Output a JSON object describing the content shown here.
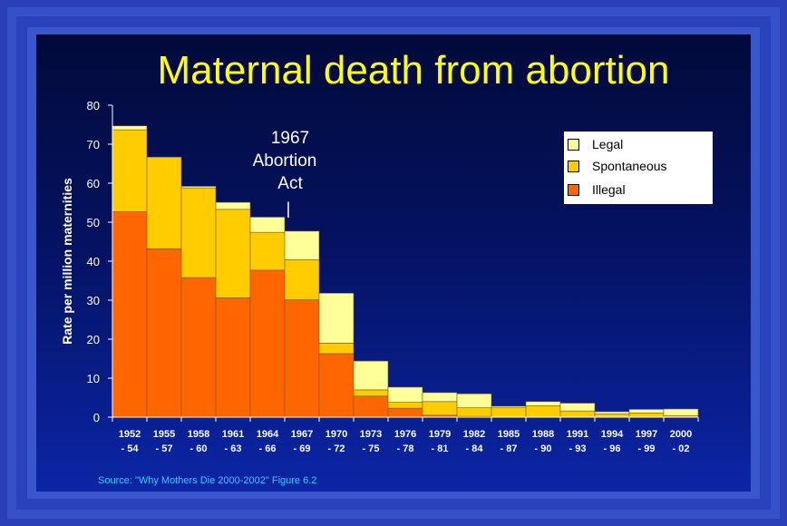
{
  "colors": {
    "legal": "#ffff99",
    "spontaneous": "#ffcc00",
    "illegal": "#ff6600",
    "title": "#ffff00",
    "source": "#33ccff"
  },
  "annotation": {
    "line1": "1967",
    "line2": "Abortion",
    "line3": "Act",
    "marker": "|"
  },
  "source_text": "Source: \"Why Mothers Die 2000-2002\" Figure 6.2",
  "chart_data": {
    "type": "bar",
    "stacked": true,
    "title": "Maternal death from abortion",
    "xlabel": "",
    "ylabel": "Rate per million maternities",
    "ylim": [
      0,
      80
    ],
    "yticks": [
      0,
      10,
      20,
      30,
      40,
      50,
      60,
      70,
      80
    ],
    "categories": [
      [
        "1952",
        "- 54"
      ],
      [
        "1955",
        "- 57"
      ],
      [
        "1958",
        "- 60"
      ],
      [
        "1961",
        "- 63"
      ],
      [
        "1964",
        "- 66"
      ],
      [
        "1967",
        "- 69"
      ],
      [
        "1970",
        "- 72"
      ],
      [
        "1973",
        "- 75"
      ],
      [
        "1976",
        "- 78"
      ],
      [
        "1979",
        "- 81"
      ],
      [
        "1982",
        "- 84"
      ],
      [
        "1985",
        "- 87"
      ],
      [
        "1988",
        "- 90"
      ],
      [
        "1991",
        "- 93"
      ],
      [
        "1994",
        "- 96"
      ],
      [
        "1997",
        "- 99"
      ],
      [
        "2000",
        "- 02"
      ]
    ],
    "series": [
      {
        "name": "Illegal",
        "values": [
          52.7,
          43.2,
          35.8,
          30.6,
          37.7,
          30.1,
          16.3,
          5.4,
          2.3,
          0.5,
          0.2,
          0,
          0,
          0,
          0,
          0,
          0
        ]
      },
      {
        "name": "Spontaneous",
        "values": [
          21,
          23.5,
          23,
          22.7,
          9.7,
          10.3,
          2.7,
          1.6,
          1.5,
          3.5,
          2.2,
          2.4,
          2.9,
          1.6,
          0.8,
          1.1,
          0.4
        ]
      },
      {
        "name": "Legal",
        "values": [
          1,
          0,
          0.4,
          1.8,
          3.9,
          7.3,
          12.8,
          7.4,
          3.9,
          2.3,
          3.6,
          0.4,
          1.1,
          2.0,
          0.6,
          0.9,
          1.7
        ]
      }
    ],
    "legend": [
      "Legal",
      "Spontaneous",
      "Illegal"
    ],
    "legend_position": "top-right"
  }
}
